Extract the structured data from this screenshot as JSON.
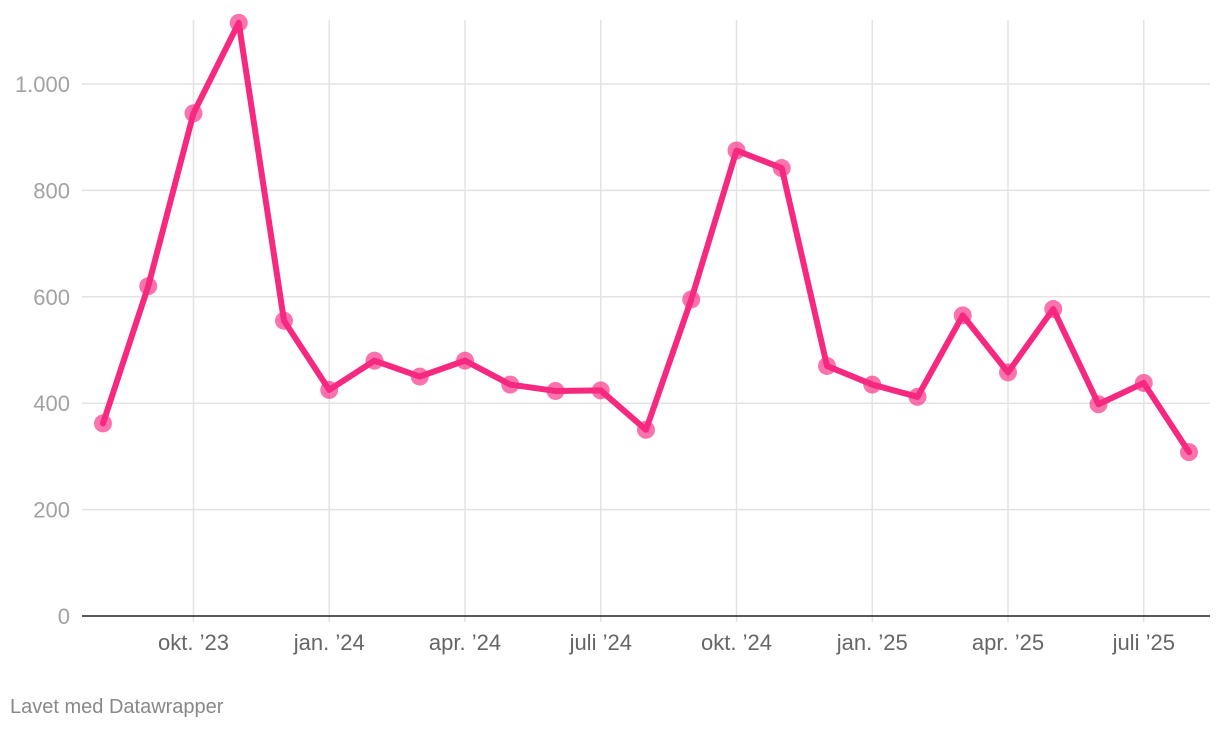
{
  "colors": {
    "series": "#f7287f",
    "grid": "#e3e3e3",
    "baseline": "#222222"
  },
  "footer": {
    "credit": "Lavet med Datawrapper"
  },
  "chart_data": {
    "type": "line",
    "title": "",
    "xlabel": "",
    "ylabel": "",
    "ylim": [
      0,
      1120
    ],
    "y_ticks": [
      0,
      200,
      400,
      600,
      800,
      1000
    ],
    "y_tick_labels": [
      "0",
      "200",
      "400",
      "600",
      "800",
      "1.000"
    ],
    "x_range": [
      "2023-08",
      "2025-08"
    ],
    "x_ticks": [
      {
        "date": "2023-10",
        "label": "okt. ’23"
      },
      {
        "date": "2024-01",
        "label": "jan. ’24"
      },
      {
        "date": "2024-04",
        "label": "apr. ’24"
      },
      {
        "date": "2024-07",
        "label": "juli ’24"
      },
      {
        "date": "2024-10",
        "label": "okt. ’24"
      },
      {
        "date": "2025-01",
        "label": "jan. ’25"
      },
      {
        "date": "2025-04",
        "label": "apr. ’25"
      },
      {
        "date": "2025-07",
        "label": "juli ’25"
      }
    ],
    "grid": true,
    "markers": true,
    "series": [
      {
        "x": [
          "2023-08",
          "2023-09",
          "2023-10",
          "2023-11",
          "2023-12",
          "2024-01",
          "2024-02",
          "2024-03",
          "2024-04",
          "2024-05",
          "2024-06",
          "2024-07",
          "2024-08",
          "2024-09",
          "2024-10",
          "2024-11",
          "2024-12",
          "2025-01",
          "2025-02",
          "2025-03",
          "2025-04",
          "2025-05",
          "2025-06",
          "2025-07",
          "2025-08"
        ],
        "values": [
          362,
          620,
          945,
          1115,
          555,
          425,
          480,
          450,
          480,
          435,
          423,
          424,
          350,
          595,
          875,
          842,
          470,
          435,
          412,
          565,
          458,
          577,
          398,
          438,
          308
        ]
      }
    ]
  }
}
